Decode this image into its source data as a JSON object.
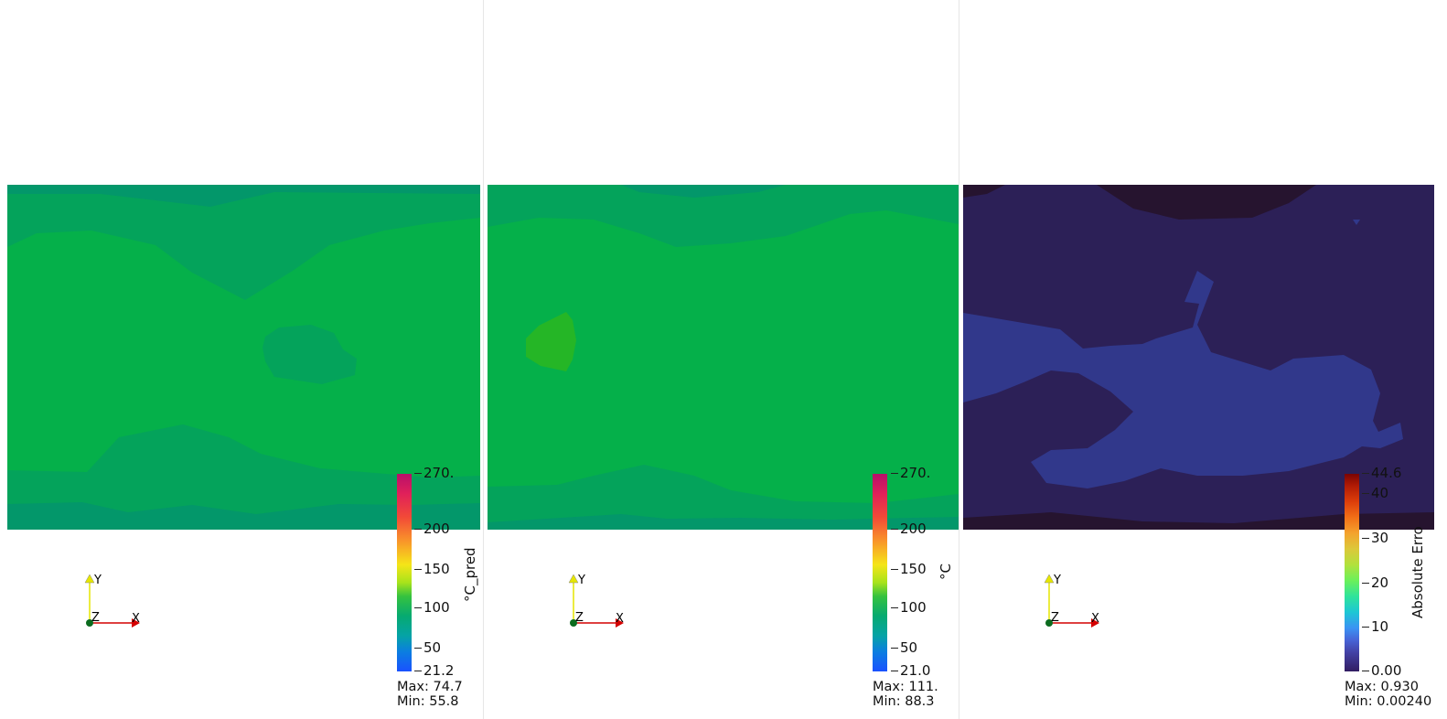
{
  "panels": [
    {
      "id": "prediction",
      "colorbar": {
        "title": "°C_pred",
        "ticks": [
          "270.",
          "200",
          "150",
          "100",
          "50",
          "21.2"
        ],
        "max_label": "Max: 74.7",
        "min_label": "Min: 55.8",
        "colormap": "rainbow-desaturated"
      }
    },
    {
      "id": "ground-truth",
      "colorbar": {
        "title": "°C",
        "ticks": [
          "270.",
          "200",
          "150",
          "100",
          "50",
          "21.0"
        ],
        "max_label": "Max: 111.",
        "min_label": "Min: 88.3",
        "colormap": "rainbow-desaturated"
      }
    },
    {
      "id": "absolute-error",
      "colorbar": {
        "title": "Absolute Erro",
        "ticks": [
          "44.6",
          "40",
          "30",
          "20",
          "10",
          "0.00"
        ],
        "max_label": "Max: 0.930",
        "min_label": "Min: 0.00240",
        "colormap": "turbo"
      }
    }
  ],
  "orientation_axes": {
    "x_label": "X",
    "y_label": "Y",
    "z_label": "Z"
  },
  "colors": {
    "field_green_light": "#05b04a",
    "field_green_mid": "#04a35b",
    "field_green_dark": "#03976a",
    "field_green_yellow": "#25b626",
    "error_dark": "#2c2057",
    "error_darkest": "#26142f",
    "error_mid": "#31388b",
    "axis_x": "#d40000",
    "axis_y": "#e6e600",
    "axis_z": "#0b6b1e"
  }
}
